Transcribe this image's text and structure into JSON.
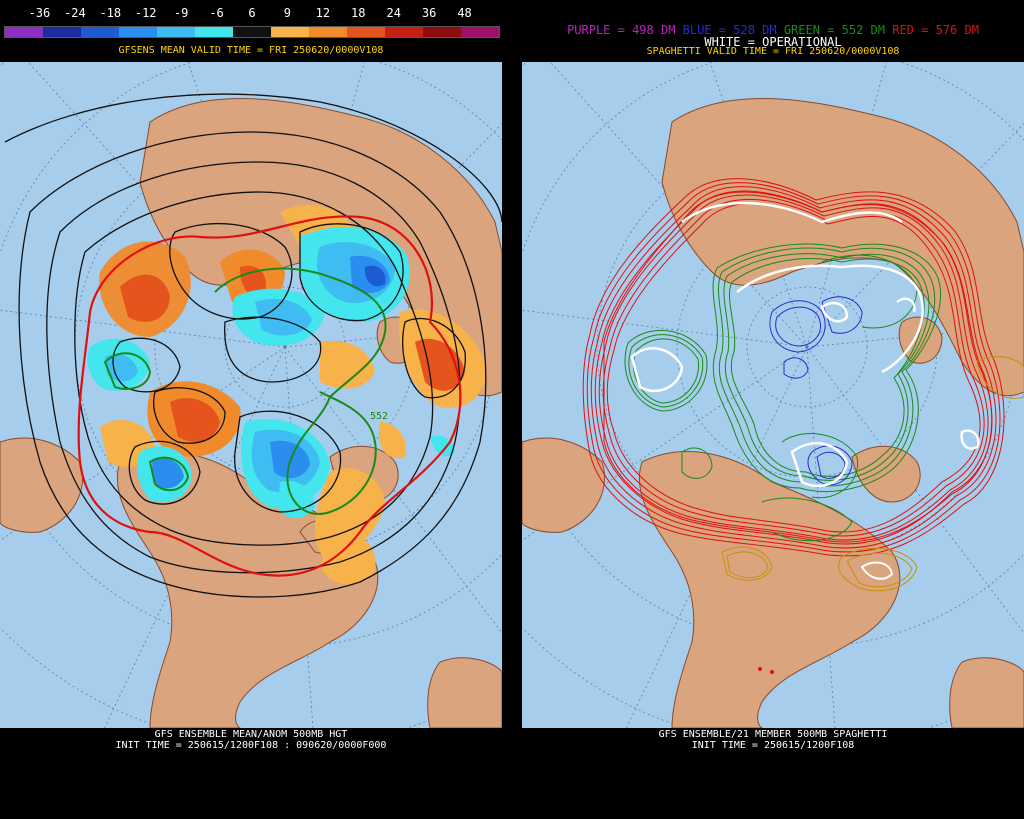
{
  "left_panel": {
    "scale_labels": [
      "-36",
      "-24",
      "-18",
      "-12",
      "-9",
      "-6",
      "6",
      "9",
      "12",
      "18",
      "24",
      "36",
      "48"
    ],
    "scale_colors": [
      "#8a2fc2",
      "#1a2c9e",
      "#1c5bd2",
      "#2a8ef0",
      "#3fbcf2",
      "#43e6ec",
      "#111111",
      "#f7b24a",
      "#f18a2a",
      "#e4541c",
      "#c42014",
      "#8c0c10",
      "#a0106a"
    ],
    "top_caption": "GFSENS MEAN VALID TIME = FRI 250620/0000V108",
    "contour_label": "552",
    "bottom_title": "GFS ENSEMBLE MEAN/ANOM 500MB HGT",
    "bottom_init": "INIT TIME = 250615/1200F108 : 090620/0000F000"
  },
  "right_panel": {
    "legend_purple": "PURPLE = 498 DM",
    "legend_blue": "BLUE = 528 DM",
    "legend_green": "GREEN = 552 DM",
    "legend_red": "RED = 576 DM",
    "legend_white": "WHITE = OPERATIONAL",
    "top_caption": "SPAGHETTI VALID TIME = FRI 250620/0000V108",
    "bottom_title": "GFS ENSEMBLE/21 MEMBER 500MB SPAGHETTI",
    "bottom_init": "INIT TIME = 250615/1200F108"
  },
  "colors": {
    "ocean": "#a6cdec",
    "land": "#d9a47e",
    "border": "#8b4a2a",
    "purple": "#b020c0",
    "blue": "#2a2ad0",
    "green": "#1a8a1a",
    "red": "#e01010",
    "white": "#ffffff",
    "gold": "#c8900a"
  }
}
